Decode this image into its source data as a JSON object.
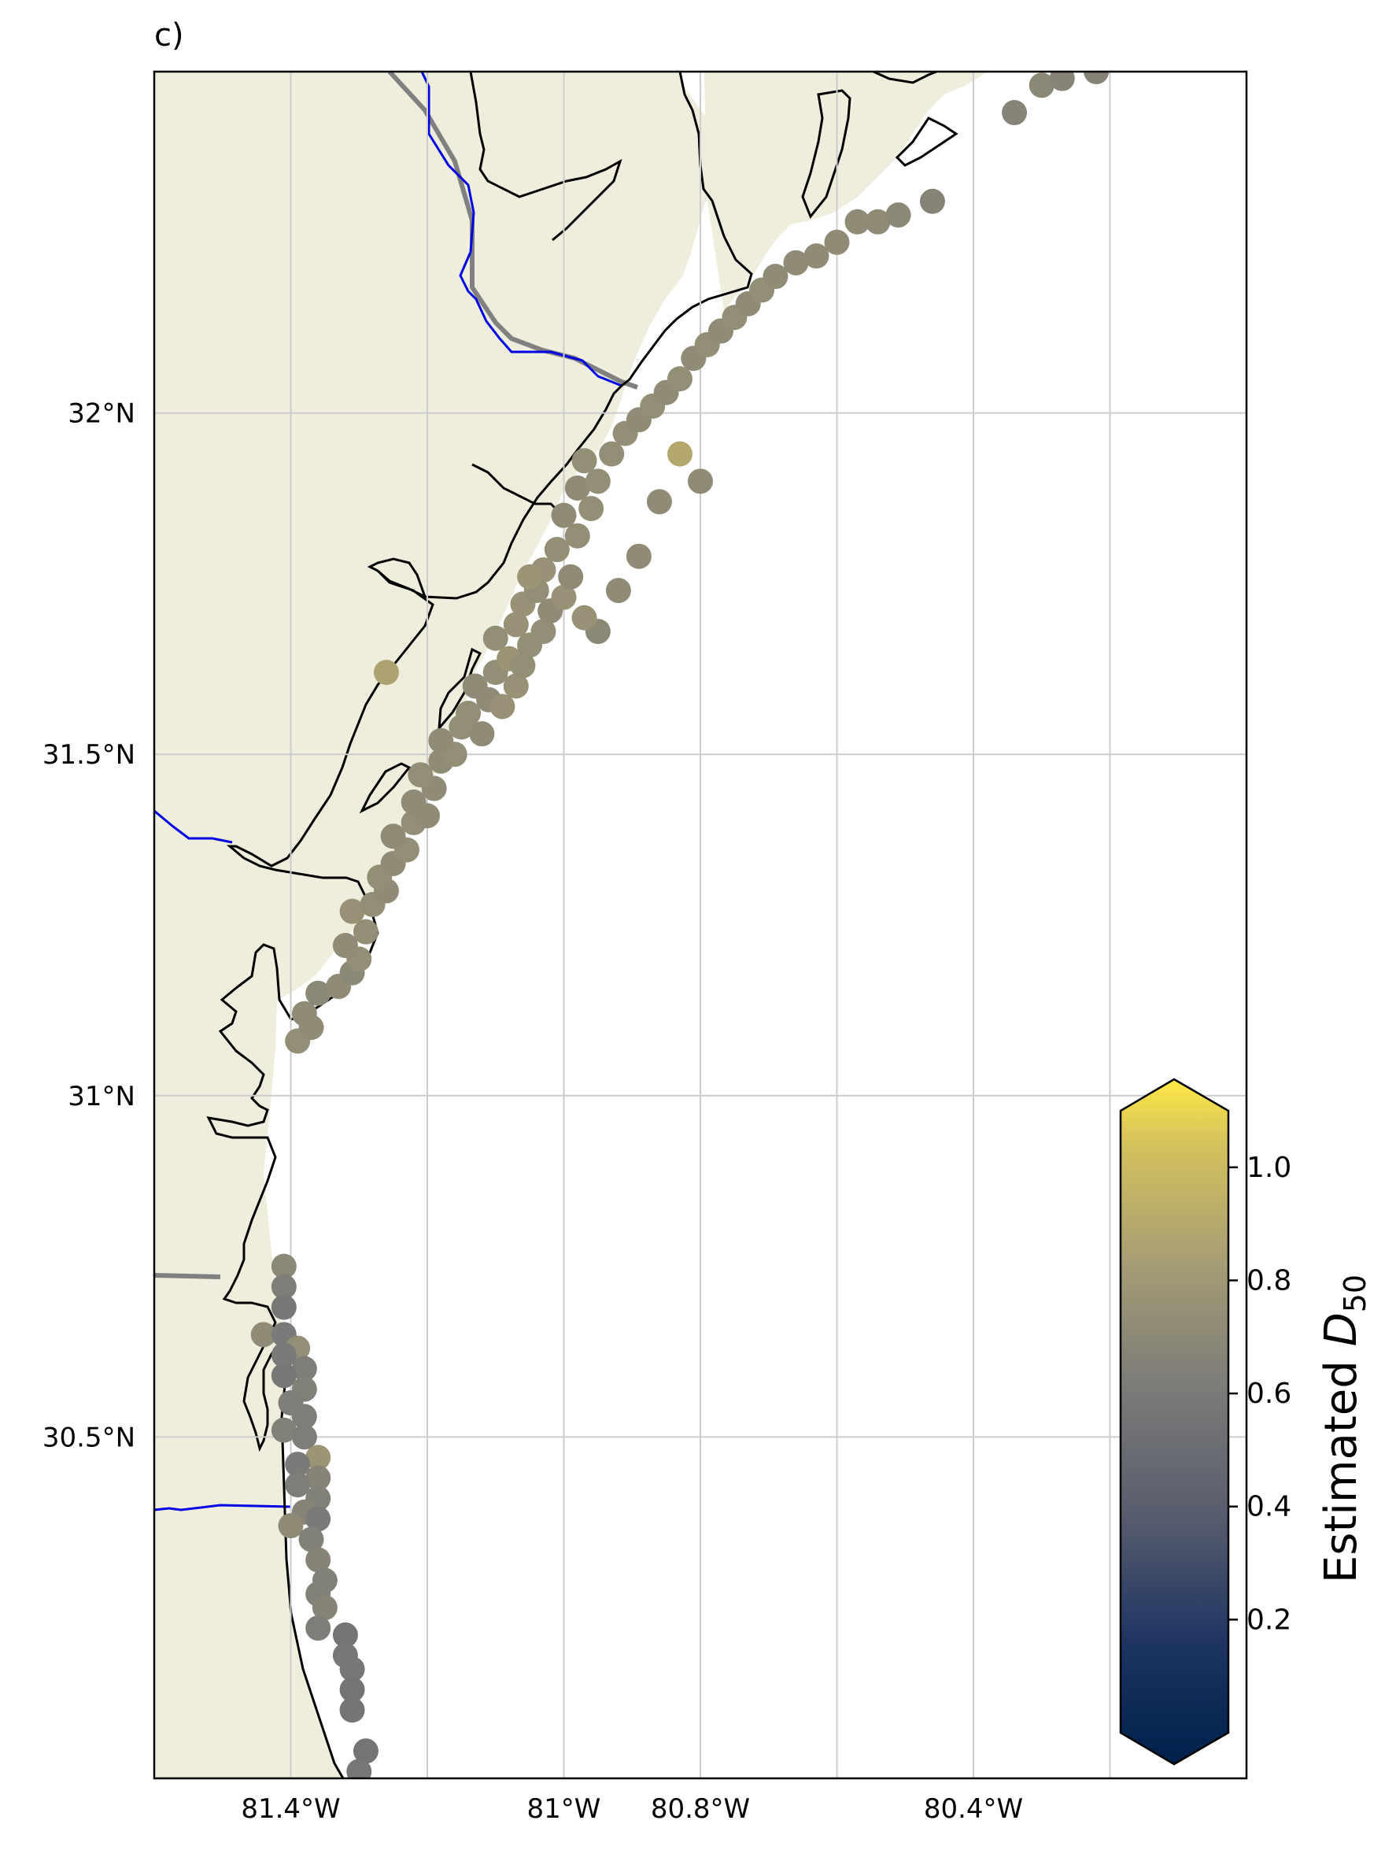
{
  "panel_label": "c)",
  "map": {
    "projection": "PlateCarree",
    "lon_range": [
      -81.6,
      -80.0
    ],
    "lat_range": [
      30.0,
      32.5
    ],
    "land_color": "#efeedc",
    "coastline_color": "#000000",
    "river_color": "#0000e6",
    "state_border_color": "#808080",
    "grid_color": "#cccccc",
    "x_ticks": [
      {
        "value": -81.4,
        "label": "81.4°W"
      },
      {
        "value": -81.0,
        "label": "81°W"
      },
      {
        "value": -80.8,
        "label": "80.8°W"
      },
      {
        "value": -80.4,
        "label": "80.4°W"
      }
    ],
    "y_ticks": [
      {
        "value": 32.0,
        "label": "32°N"
      },
      {
        "value": 31.5,
        "label": "31.5°N"
      },
      {
        "value": 31.0,
        "label": "31°N"
      },
      {
        "value": 30.5,
        "label": "30.5°N"
      }
    ]
  },
  "colorbar": {
    "colormap": "cividis",
    "range": [
      0.0,
      1.1
    ],
    "extend": "both",
    "ticks": [
      "0.2",
      "0.4",
      "0.6",
      "0.8",
      "1.0"
    ],
    "tick_values": [
      0.2,
      0.4,
      0.6,
      0.8,
      1.0
    ],
    "label_text": "Estimated ",
    "label_symbol": "D",
    "label_sub": "50"
  },
  "chart_data": {
    "type": "scatter",
    "x_label": "",
    "y_label": "",
    "points_lon_lat_value": [
      [
        -81.41,
        30.75,
        0.68
      ],
      [
        -81.41,
        30.72,
        0.62
      ],
      [
        -81.41,
        30.69,
        0.58
      ],
      [
        -81.44,
        30.65,
        0.7
      ],
      [
        -81.41,
        30.65,
        0.6
      ],
      [
        -81.39,
        30.63,
        0.72
      ],
      [
        -81.41,
        30.62,
        0.6
      ],
      [
        -81.38,
        30.6,
        0.62
      ],
      [
        -81.41,
        30.59,
        0.58
      ],
      [
        -81.38,
        30.57,
        0.64
      ],
      [
        -81.4,
        30.55,
        0.62
      ],
      [
        -81.38,
        30.53,
        0.62
      ],
      [
        -81.41,
        30.51,
        0.64
      ],
      [
        -81.38,
        30.5,
        0.62
      ],
      [
        -81.36,
        30.47,
        0.76
      ],
      [
        -81.39,
        30.46,
        0.6
      ],
      [
        -81.36,
        30.44,
        0.66
      ],
      [
        -81.39,
        30.43,
        0.62
      ],
      [
        -81.36,
        30.41,
        0.64
      ],
      [
        -81.38,
        30.39,
        0.66
      ],
      [
        -81.4,
        30.37,
        0.7
      ],
      [
        -81.36,
        30.38,
        0.6
      ],
      [
        -81.37,
        30.35,
        0.64
      ],
      [
        -81.36,
        30.32,
        0.66
      ],
      [
        -81.35,
        30.29,
        0.64
      ],
      [
        -81.36,
        30.27,
        0.64
      ],
      [
        -81.35,
        30.25,
        0.66
      ],
      [
        -81.36,
        30.22,
        0.62
      ],
      [
        -81.32,
        30.21,
        0.56
      ],
      [
        -81.32,
        30.18,
        0.58
      ],
      [
        -81.31,
        30.16,
        0.58
      ],
      [
        -81.31,
        30.13,
        0.56
      ],
      [
        -81.31,
        30.1,
        0.56
      ],
      [
        -81.29,
        30.04,
        0.56
      ],
      [
        -81.3,
        30.01,
        0.58
      ],
      [
        -81.39,
        31.08,
        0.72
      ],
      [
        -81.37,
        31.1,
        0.7
      ],
      [
        -81.38,
        31.12,
        0.7
      ],
      [
        -81.36,
        31.15,
        0.68
      ],
      [
        -81.33,
        31.16,
        0.7
      ],
      [
        -81.31,
        31.18,
        0.68
      ],
      [
        -81.3,
        31.2,
        0.72
      ],
      [
        -81.32,
        31.22,
        0.7
      ],
      [
        -81.29,
        31.24,
        0.72
      ],
      [
        -81.31,
        31.27,
        0.74
      ],
      [
        -81.28,
        31.28,
        0.72
      ],
      [
        -81.26,
        31.3,
        0.7
      ],
      [
        -81.27,
        31.32,
        0.72
      ],
      [
        -81.25,
        31.34,
        0.7
      ],
      [
        -81.23,
        31.36,
        0.72
      ],
      [
        -81.25,
        31.38,
        0.7
      ],
      [
        -81.22,
        31.4,
        0.72
      ],
      [
        -81.2,
        31.41,
        0.7
      ],
      [
        -81.22,
        31.43,
        0.7
      ],
      [
        -81.19,
        31.45,
        0.7
      ],
      [
        -81.21,
        31.47,
        0.72
      ],
      [
        -81.18,
        31.49,
        0.7
      ],
      [
        -81.16,
        31.5,
        0.72
      ],
      [
        -81.18,
        31.52,
        0.7
      ],
      [
        -81.15,
        31.54,
        0.72
      ],
      [
        -81.12,
        31.53,
        0.7
      ],
      [
        -81.14,
        31.56,
        0.72
      ],
      [
        -81.11,
        31.58,
        0.7
      ],
      [
        -81.09,
        31.57,
        0.74
      ],
      [
        -81.13,
        31.6,
        0.7
      ],
      [
        -81.1,
        31.62,
        0.72
      ],
      [
        -81.07,
        31.6,
        0.74
      ],
      [
        -81.08,
        31.64,
        0.76
      ],
      [
        -81.06,
        31.63,
        0.72
      ],
      [
        -81.1,
        31.67,
        0.72
      ],
      [
        -81.05,
        31.66,
        0.72
      ],
      [
        -81.07,
        31.69,
        0.74
      ],
      [
        -81.03,
        31.68,
        0.72
      ],
      [
        -81.06,
        31.72,
        0.74
      ],
      [
        -81.02,
        31.71,
        0.7
      ],
      [
        -81.04,
        31.74,
        0.72
      ],
      [
        -81.0,
        31.73,
        0.74
      ],
      [
        -81.03,
        31.77,
        0.74
      ],
      [
        -80.99,
        31.76,
        0.7
      ],
      [
        -81.01,
        31.8,
        0.72
      ],
      [
        -80.98,
        31.82,
        0.72
      ],
      [
        -81.0,
        31.85,
        0.7
      ],
      [
        -80.96,
        31.86,
        0.72
      ],
      [
        -80.98,
        31.89,
        0.7
      ],
      [
        -80.95,
        31.9,
        0.72
      ],
      [
        -80.97,
        31.93,
        0.72
      ],
      [
        -80.93,
        31.94,
        0.72
      ],
      [
        -80.91,
        31.97,
        0.72
      ],
      [
        -80.89,
        31.99,
        0.7
      ],
      [
        -80.87,
        32.01,
        0.72
      ],
      [
        -80.85,
        32.03,
        0.7
      ],
      [
        -80.83,
        32.05,
        0.72
      ],
      [
        -80.81,
        32.08,
        0.7
      ],
      [
        -80.79,
        32.1,
        0.72
      ],
      [
        -80.77,
        32.12,
        0.7
      ],
      [
        -80.75,
        32.14,
        0.72
      ],
      [
        -80.73,
        32.16,
        0.7
      ],
      [
        -80.71,
        32.18,
        0.72
      ],
      [
        -80.69,
        32.2,
        0.7
      ],
      [
        -80.66,
        32.22,
        0.7
      ],
      [
        -80.63,
        32.23,
        0.7
      ],
      [
        -80.6,
        32.25,
        0.7
      ],
      [
        -80.57,
        32.28,
        0.7
      ],
      [
        -80.54,
        32.28,
        0.7
      ],
      [
        -80.51,
        32.29,
        0.68
      ],
      [
        -80.46,
        32.31,
        0.66
      ],
      [
        -80.34,
        32.44,
        0.66
      ],
      [
        -80.3,
        32.48,
        0.68
      ],
      [
        -80.27,
        32.49,
        0.66
      ],
      [
        -80.22,
        32.5,
        0.66
      ],
      [
        -80.83,
        31.94,
        0.86
      ],
      [
        -80.86,
        31.87,
        0.7
      ],
      [
        -80.89,
        31.79,
        0.7
      ],
      [
        -80.92,
        31.74,
        0.7
      ],
      [
        -80.95,
        31.68,
        0.68
      ],
      [
        -80.97,
        31.7,
        0.74
      ],
      [
        -81.26,
        31.62,
        0.84
      ],
      [
        -81.05,
        31.76,
        0.76
      ],
      [
        -80.8,
        31.9,
        0.7
      ]
    ]
  }
}
